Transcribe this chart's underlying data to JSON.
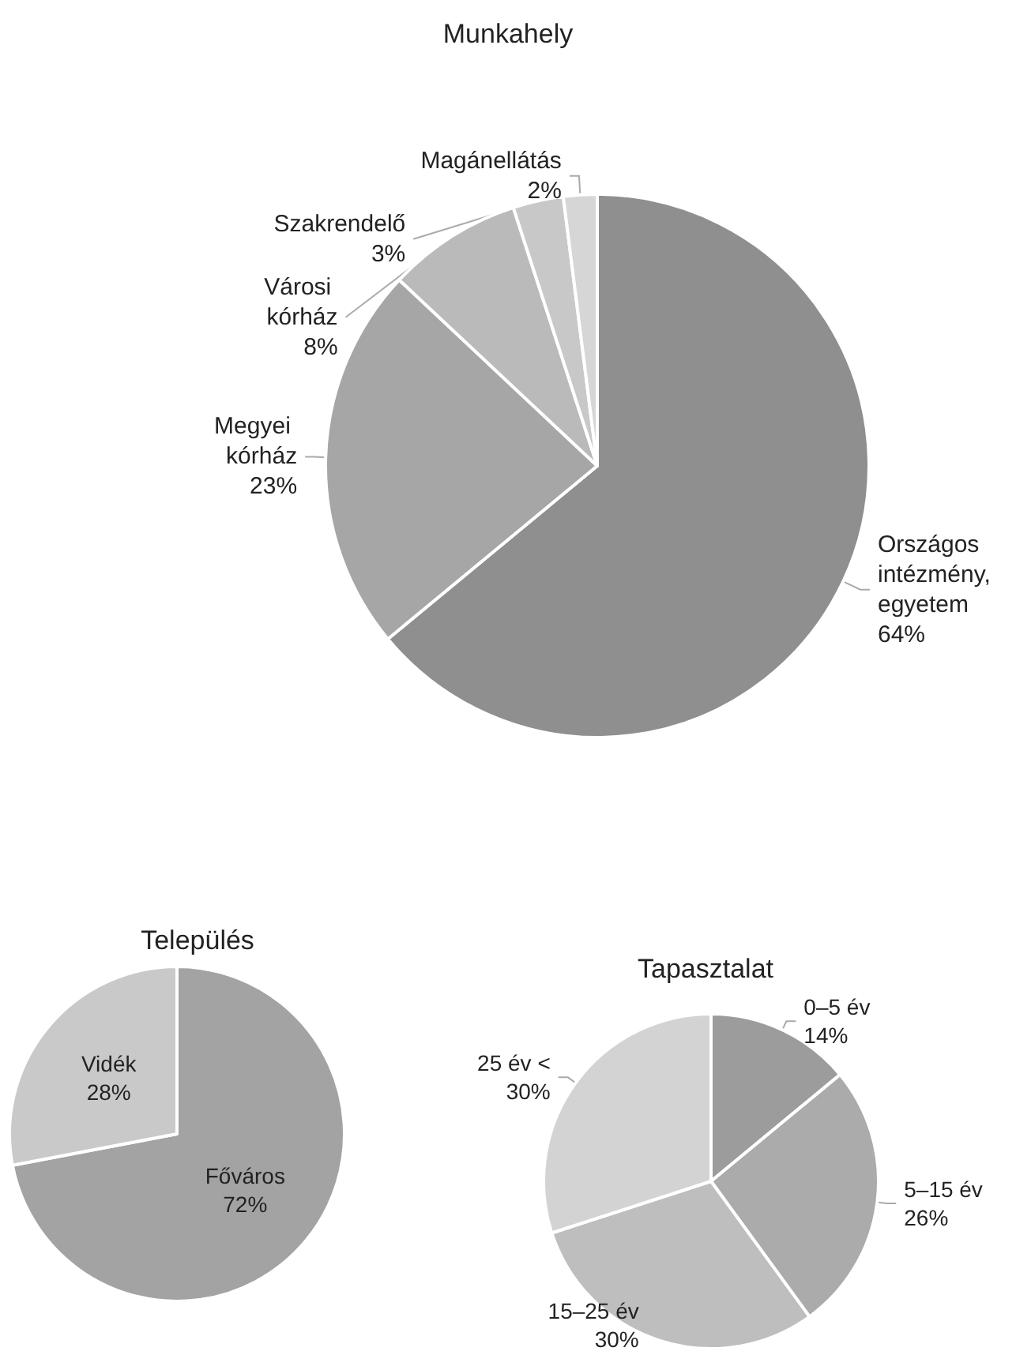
{
  "chart_data": [
    {
      "type": "pie",
      "title": "Munkahely",
      "categories": [
        "Országos intézmény, egyetem",
        "Megyei kórház",
        "Városi kórház",
        "Szakrendelő",
        "Magánellátás"
      ],
      "values": [
        64,
        23,
        8,
        3,
        2
      ],
      "value_labels": [
        "64%",
        "23%",
        "8%",
        "3%",
        "2%"
      ],
      "colors": [
        "#8f8f8f",
        "#a6a6a6",
        "#bababa",
        "#c8c8c8",
        "#d6d6d6"
      ],
      "legend": false
    },
    {
      "type": "pie",
      "title": "Település",
      "categories": [
        "Főváros",
        "Vidék"
      ],
      "values": [
        72,
        28
      ],
      "value_labels": [
        "72%",
        "28%"
      ],
      "colors": [
        "#a3a3a3",
        "#c9c9c9"
      ],
      "legend": false
    },
    {
      "type": "pie",
      "title": "Tapasztalat",
      "categories": [
        "0–5 év",
        "5–15 év",
        "15–25 év",
        "25 év <"
      ],
      "values": [
        14,
        26,
        30,
        30
      ],
      "value_labels": [
        "14%",
        "26%",
        "30%",
        "30%"
      ],
      "colors": [
        "#9c9c9c",
        "#ababab",
        "#bebebe",
        "#d3d3d3"
      ],
      "legend": false
    }
  ]
}
